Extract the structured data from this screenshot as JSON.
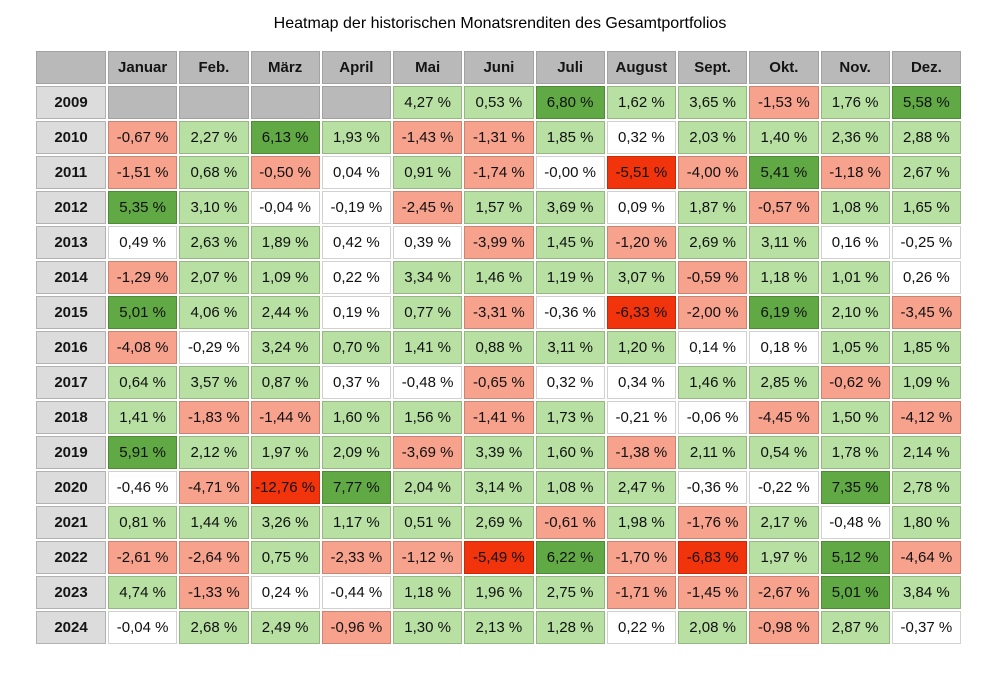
{
  "title": "Heatmap der historischen Monatsrenditen des Gesamtportfolios",
  "table": {
    "corner_label": "",
    "months": [
      "Januar",
      "Feb.",
      "März",
      "April",
      "Mai",
      "Juni",
      "Juli",
      "August",
      "Sept.",
      "Okt.",
      "Nov.",
      "Dez."
    ],
    "rows": [
      {
        "year": "2009",
        "values": [
          null,
          null,
          null,
          null,
          "4,27 %",
          "0,53 %",
          "6,80 %",
          "1,62 %",
          "3,65 %",
          "-1,53 %",
          "1,76 %",
          "5,58 %"
        ]
      },
      {
        "year": "2010",
        "values": [
          "-0,67 %",
          "2,27 %",
          "6,13 %",
          "1,93 %",
          "-1,43 %",
          "-1,31 %",
          "1,85 %",
          "0,32 %",
          "2,03 %",
          "1,40 %",
          "2,36 %",
          "2,88 %"
        ]
      },
      {
        "year": "2011",
        "values": [
          "-1,51 %",
          "0,68 %",
          "-0,50 %",
          "0,04 %",
          "0,91 %",
          "-1,74 %",
          "-0,00 %",
          "-5,51 %",
          "-4,00 %",
          "5,41 %",
          "-1,18 %",
          "2,67 %"
        ]
      },
      {
        "year": "2012",
        "values": [
          "5,35 %",
          "3,10 %",
          "-0,04 %",
          "-0,19 %",
          "-2,45 %",
          "1,57 %",
          "3,69 %",
          "0,09 %",
          "1,87 %",
          "-0,57 %",
          "1,08 %",
          "1,65 %"
        ]
      },
      {
        "year": "2013",
        "values": [
          "0,49 %",
          "2,63 %",
          "1,89 %",
          "0,42 %",
          "0,39 %",
          "-3,99 %",
          "1,45 %",
          "-1,20 %",
          "2,69 %",
          "3,11 %",
          "0,16 %",
          "-0,25 %"
        ]
      },
      {
        "year": "2014",
        "values": [
          "-1,29 %",
          "2,07 %",
          "1,09 %",
          "0,22 %",
          "3,34 %",
          "1,46 %",
          "1,19 %",
          "3,07 %",
          "-0,59 %",
          "1,18 %",
          "1,01 %",
          "0,26 %"
        ]
      },
      {
        "year": "2015",
        "values": [
          "5,01 %",
          "4,06 %",
          "2,44 %",
          "0,19 %",
          "0,77 %",
          "-3,31 %",
          "-0,36 %",
          "-6,33 %",
          "-2,00 %",
          "6,19 %",
          "2,10 %",
          "-3,45 %"
        ]
      },
      {
        "year": "2016",
        "values": [
          "-4,08 %",
          "-0,29 %",
          "3,24 %",
          "0,70 %",
          "1,41 %",
          "0,88 %",
          "3,11 %",
          "1,20 %",
          "0,14 %",
          "0,18 %",
          "1,05 %",
          "1,85 %"
        ]
      },
      {
        "year": "2017",
        "values": [
          "0,64 %",
          "3,57 %",
          "0,87 %",
          "0,37 %",
          "-0,48 %",
          "-0,65 %",
          "0,32 %",
          "0,34 %",
          "1,46 %",
          "2,85 %",
          "-0,62 %",
          "1,09 %"
        ]
      },
      {
        "year": "2018",
        "values": [
          "1,41 %",
          "-1,83 %",
          "-1,44 %",
          "1,60 %",
          "1,56 %",
          "-1,41 %",
          "1,73 %",
          "-0,21 %",
          "-0,06 %",
          "-4,45 %",
          "1,50 %",
          "-4,12 %"
        ]
      },
      {
        "year": "2019",
        "values": [
          "5,91 %",
          "2,12 %",
          "1,97 %",
          "2,09 %",
          "-3,69 %",
          "3,39 %",
          "1,60 %",
          "-1,38 %",
          "2,11 %",
          "0,54 %",
          "1,78 %",
          "2,14 %"
        ]
      },
      {
        "year": "2020",
        "values": [
          "-0,46 %",
          "-4,71 %",
          "-12,76 %",
          "7,77 %",
          "2,04 %",
          "3,14 %",
          "1,08 %",
          "2,47 %",
          "-0,36 %",
          "-0,22 %",
          "7,35 %",
          "2,78 %"
        ]
      },
      {
        "year": "2021",
        "values": [
          "0,81 %",
          "1,44 %",
          "3,26 %",
          "1,17 %",
          "0,51 %",
          "2,69 %",
          "-0,61 %",
          "1,98 %",
          "-1,76 %",
          "2,17 %",
          "-0,48 %",
          "1,80 %"
        ]
      },
      {
        "year": "2022",
        "values": [
          "-2,61 %",
          "-2,64 %",
          "0,75 %",
          "-2,33 %",
          "-1,12 %",
          "-5,49 %",
          "6,22 %",
          "-1,70 %",
          "-6,83 %",
          "1,97 %",
          "5,12 %",
          "-4,64 %"
        ]
      },
      {
        "year": "2023",
        "values": [
          "4,74 %",
          "-1,33 %",
          "0,24 %",
          "-0,44 %",
          "1,18 %",
          "1,96 %",
          "2,75 %",
          "-1,71 %",
          "-1,45 %",
          "-2,67 %",
          "5,01 %",
          "3,84 %"
        ]
      },
      {
        "year": "2024",
        "values": [
          "-0,04 %",
          "2,68 %",
          "2,49 %",
          "-0,96 %",
          "1,30 %",
          "2,13 %",
          "1,28 %",
          "0,22 %",
          "2,08 %",
          "-0,98 %",
          "2,87 %",
          "-0,37 %"
        ]
      }
    ]
  },
  "colors": {
    "strong_positive": "#61a944",
    "positive": "#b7e0a2",
    "neutral": "#ffffff",
    "negative": "#f7a28d",
    "strong_negative": "#f2340c",
    "empty_cell": "#b9b9b9",
    "header_bg": "#b9b9b9",
    "year_bg": "#dcdcdc"
  },
  "thresholds": {
    "strong_positive_min": 5,
    "positive_min": 0.5,
    "neutral_min": -0.5,
    "strong_negative_max": -5
  },
  "chart_data": {
    "type": "heatmap",
    "title": "Heatmap der historischen Monatsrenditen des Gesamtportfolios",
    "x": [
      "Januar",
      "Feb.",
      "März",
      "April",
      "Mai",
      "Juni",
      "Juli",
      "August",
      "Sept.",
      "Okt.",
      "Nov.",
      "Dez."
    ],
    "y": [
      "2009",
      "2010",
      "2011",
      "2012",
      "2013",
      "2014",
      "2015",
      "2016",
      "2017",
      "2018",
      "2019",
      "2020",
      "2021",
      "2022",
      "2023",
      "2024"
    ],
    "unit": "%",
    "values": [
      [
        null,
        null,
        null,
        null,
        4.27,
        0.53,
        6.8,
        1.62,
        3.65,
        -1.53,
        1.76,
        5.58
      ],
      [
        -0.67,
        2.27,
        6.13,
        1.93,
        -1.43,
        -1.31,
        1.85,
        0.32,
        2.03,
        1.4,
        2.36,
        2.88
      ],
      [
        -1.51,
        0.68,
        -0.5,
        0.04,
        0.91,
        -1.74,
        -0.0,
        -5.51,
        -4.0,
        5.41,
        -1.18,
        2.67
      ],
      [
        5.35,
        3.1,
        -0.04,
        -0.19,
        -2.45,
        1.57,
        3.69,
        0.09,
        1.87,
        -0.57,
        1.08,
        1.65
      ],
      [
        0.49,
        2.63,
        1.89,
        0.42,
        0.39,
        -3.99,
        1.45,
        -1.2,
        2.69,
        3.11,
        0.16,
        -0.25
      ],
      [
        -1.29,
        2.07,
        1.09,
        0.22,
        3.34,
        1.46,
        1.19,
        3.07,
        -0.59,
        1.18,
        1.01,
        0.26
      ],
      [
        5.01,
        4.06,
        2.44,
        0.19,
        0.77,
        -3.31,
        -0.36,
        -6.33,
        -2.0,
        6.19,
        2.1,
        -3.45
      ],
      [
        -4.08,
        -0.29,
        3.24,
        0.7,
        1.41,
        0.88,
        3.11,
        1.2,
        0.14,
        0.18,
        1.05,
        1.85
      ],
      [
        0.64,
        3.57,
        0.87,
        0.37,
        -0.48,
        -0.65,
        0.32,
        0.34,
        1.46,
        2.85,
        -0.62,
        1.09
      ],
      [
        1.41,
        -1.83,
        -1.44,
        1.6,
        1.56,
        -1.41,
        1.73,
        -0.21,
        -0.06,
        -4.45,
        1.5,
        -4.12
      ],
      [
        5.91,
        2.12,
        1.97,
        2.09,
        -3.69,
        3.39,
        1.6,
        -1.38,
        2.11,
        0.54,
        1.78,
        2.14
      ],
      [
        -0.46,
        -4.71,
        -12.76,
        7.77,
        2.04,
        3.14,
        1.08,
        2.47,
        -0.36,
        -0.22,
        7.35,
        2.78
      ],
      [
        0.81,
        1.44,
        3.26,
        1.17,
        0.51,
        2.69,
        -0.61,
        1.98,
        -1.76,
        2.17,
        -0.48,
        1.8
      ],
      [
        -2.61,
        -2.64,
        0.75,
        -2.33,
        -1.12,
        -5.49,
        6.22,
        -1.7,
        -6.83,
        1.97,
        5.12,
        -4.64
      ],
      [
        4.74,
        -1.33,
        0.24,
        -0.44,
        1.18,
        1.96,
        2.75,
        -1.71,
        -1.45,
        -2.67,
        5.01,
        3.84
      ],
      [
        -0.04,
        2.68,
        2.49,
        -0.96,
        1.3,
        2.13,
        1.28,
        0.22,
        2.08,
        -0.98,
        2.87,
        -0.37
      ]
    ],
    "legend_position": "none",
    "grid": false
  }
}
